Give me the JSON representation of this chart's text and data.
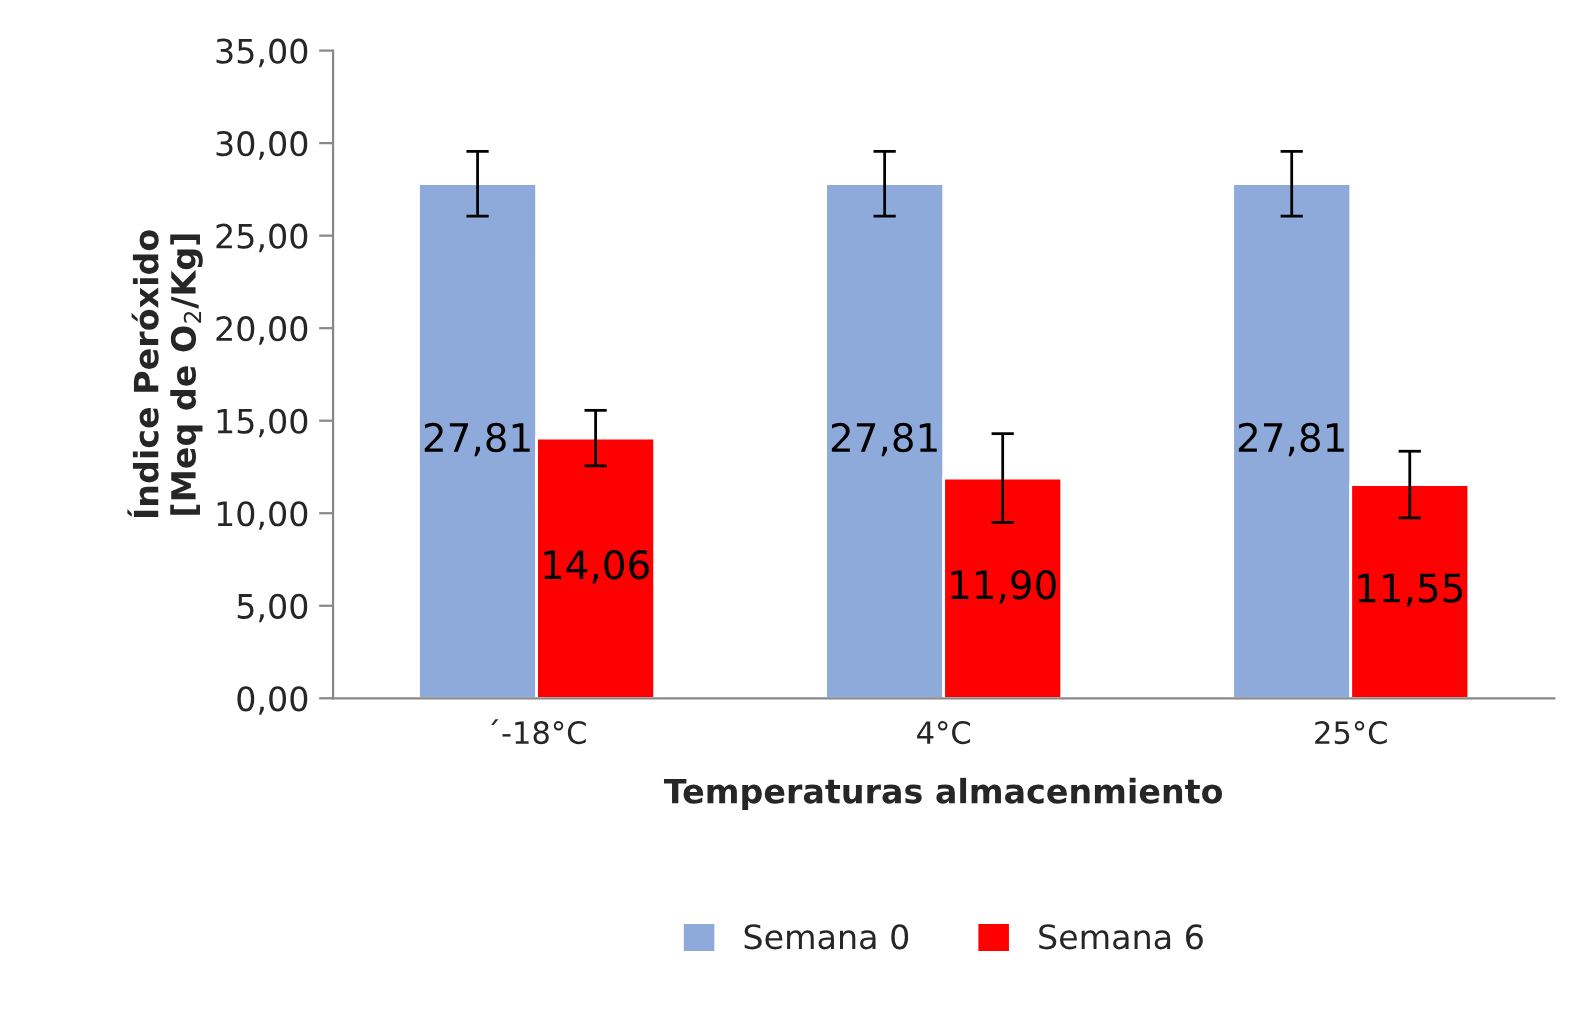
{
  "chart_data": {
    "type": "bar",
    "xlabel": "Temperaturas almacenmiento",
    "ylabel": "Índice Peróxido\n[Meq de O$_{2}$/Kg]",
    "categories": [
      "´-18°C",
      "4°C",
      "25°C"
    ],
    "series": [
      {
        "name": "Semana 0",
        "color": "#8eaadb",
        "values": [
          27.81,
          27.81,
          27.81
        ],
        "errors": [
          1.75,
          1.75,
          1.75
        ],
        "value_labels": [
          "27,81",
          "27,81",
          "27,81"
        ]
      },
      {
        "name": "Semana 6",
        "color": "#ff0000",
        "values": [
          14.06,
          11.9,
          11.55
        ],
        "errors": [
          1.5,
          2.4,
          1.8
        ],
        "value_labels": [
          "14,06",
          "11,90",
          "11,55"
        ]
      }
    ],
    "ylim": [
      0,
      35
    ],
    "yticks": [
      {
        "value": 0,
        "label": "0,00"
      },
      {
        "value": 5,
        "label": "5,00"
      },
      {
        "value": 10,
        "label": "10,00"
      },
      {
        "value": 15,
        "label": "15,00"
      },
      {
        "value": 20,
        "label": "20,00"
      },
      {
        "value": 25,
        "label": "25,00"
      },
      {
        "value": 30,
        "label": "30,00"
      },
      {
        "value": 35,
        "label": "35,00"
      }
    ],
    "grid": false,
    "legend": "bottom"
  }
}
